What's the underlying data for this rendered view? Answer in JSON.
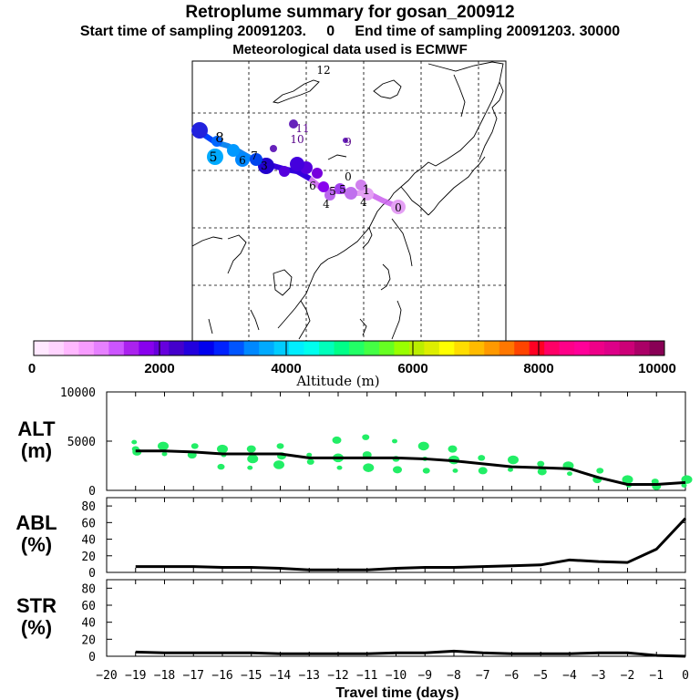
{
  "header": {
    "title": "Retroplume summary for gosan_200912",
    "sampling_line": "Start time of sampling 20091203.     0     End time of sampling 20091203. 30000",
    "met_line": "Meteorological data used is ECMWF"
  },
  "map": {
    "labels": [
      {
        "text": "12",
        "color": "#000000"
      },
      {
        "text": "11",
        "color": "#550088"
      },
      {
        "text": "10",
        "color": "#550088"
      },
      {
        "text": "9",
        "color": "#550088"
      },
      {
        "text": "8",
        "color": "#000000"
      },
      {
        "text": "5",
        "color": "#000000"
      },
      {
        "text": "6",
        "color": "#000000"
      },
      {
        "text": "7",
        "color": "#000000"
      },
      {
        "text": "3",
        "color": "#000000"
      },
      {
        "text": "6",
        "color": "#000000"
      },
      {
        "text": "5",
        "color": "#000000"
      },
      {
        "text": "4",
        "color": "#000000"
      },
      {
        "text": "0",
        "color": "#000000"
      },
      {
        "text": "5",
        "color": "#000000"
      },
      {
        "text": "4",
        "color": "#000000"
      },
      {
        "text": "1",
        "color": "#000000"
      },
      {
        "text": "0",
        "color": "#000000"
      }
    ]
  },
  "colorbar": {
    "ticks": [
      "0",
      "2000",
      "4000",
      "6000",
      "8000",
      "10000"
    ],
    "label": "Altitude (m)",
    "colors": [
      "#ffe8ff",
      "#ffd4ff",
      "#ffb8ff",
      "#f79cff",
      "#e680ff",
      "#cc55ff",
      "#aa22ee",
      "#8800ee",
      "#6600dd",
      "#4400cc",
      "#2200dd",
      "#0000ee",
      "#0022ff",
      "#0055ff",
      "#0088ff",
      "#00aaff",
      "#00ccff",
      "#00eeff",
      "#00ffee",
      "#00ffbb",
      "#00ff88",
      "#22ff66",
      "#44ff44",
      "#66ff22",
      "#99ff00",
      "#bbee00",
      "#ddee00",
      "#ffff00",
      "#ffdd00",
      "#ffbb00",
      "#ff9900",
      "#ff7700",
      "#ff4400",
      "#ff0022",
      "#ff0066",
      "#ff0088",
      "#ff0099",
      "#ee0088",
      "#dd0088",
      "#cc0077",
      "#aa0066",
      "#880055"
    ]
  },
  "chart_data": [
    {
      "type": "line",
      "name": "ALT",
      "ylabel": "ALT\n(m)",
      "yticks": [
        "10000",
        "5000",
        "0"
      ],
      "ylim": [
        0,
        10000
      ],
      "x": [
        -19,
        -18,
        -17,
        -16,
        -15,
        -14,
        -13,
        -12,
        -11,
        -10,
        -9,
        -8,
        -7,
        -6,
        -5,
        -4,
        -3,
        -2,
        -1,
        0
      ],
      "values": [
        4000,
        4000,
        3900,
        3700,
        3700,
        3700,
        3300,
        3300,
        3300,
        3300,
        3200,
        3000,
        2700,
        2400,
        2300,
        2200,
        1300,
        600,
        600,
        800
      ],
      "scatter_series": {
        "x": [
          -19,
          -19,
          -19,
          -18,
          -18,
          -17,
          -17,
          -16,
          -16,
          -16,
          -15,
          -15,
          -15,
          -14,
          -14,
          -14,
          -13,
          -13,
          -12,
          -12,
          -12,
          -11,
          -11,
          -11,
          -10,
          -10,
          -10,
          -9,
          -9,
          -9,
          -8,
          -8,
          -8,
          -7,
          -7,
          -6,
          -6,
          -5,
          -5,
          -4,
          -4,
          -3,
          -3,
          -2,
          -2,
          -1,
          -1,
          0,
          0
        ],
        "y": [
          4900,
          4200,
          3900,
          4500,
          3700,
          4500,
          3600,
          4200,
          3600,
          2400,
          4200,
          3200,
          2300,
          4500,
          3500,
          2600,
          3600,
          2900,
          5100,
          3300,
          2300,
          5400,
          3600,
          2300,
          5000,
          3200,
          2100,
          4500,
          3200,
          2000,
          4200,
          3100,
          2000,
          3300,
          2000,
          3100,
          2100,
          2700,
          1900,
          2500,
          1700,
          2000,
          1100,
          1100,
          500,
          900,
          400,
          1100,
          500
        ],
        "color": "#22ee66"
      }
    },
    {
      "type": "line",
      "name": "ABL",
      "ylabel": "ABL\n(%)",
      "yticks": [
        "80",
        "60",
        "40",
        "20",
        "0"
      ],
      "ylim": [
        0,
        90
      ],
      "x": [
        -19,
        -18,
        -17,
        -16,
        -15,
        -14,
        -13,
        -12,
        -11,
        -10,
        -9,
        -8,
        -7,
        -6,
        -5,
        -4,
        -3,
        -2,
        -1,
        0
      ],
      "values": [
        7,
        7,
        7,
        6,
        6,
        5,
        3,
        3,
        3,
        5,
        6,
        6,
        7,
        8,
        9,
        15,
        13,
        12,
        28,
        65
      ]
    },
    {
      "type": "line",
      "name": "STR",
      "ylabel": "STR\n(%)",
      "yticks": [
        "80",
        "60",
        "40",
        "20",
        "0"
      ],
      "ylim": [
        0,
        90
      ],
      "x": [
        -19,
        -18,
        -17,
        -16,
        -15,
        -14,
        -13,
        -12,
        -11,
        -10,
        -9,
        -8,
        -7,
        -6,
        -5,
        -4,
        -3,
        -2,
        -1,
        0
      ],
      "values": [
        5,
        4,
        4,
        4,
        4,
        3,
        3,
        3,
        3,
        4,
        4,
        6,
        4,
        3,
        3,
        3,
        4,
        4,
        1,
        0
      ]
    }
  ],
  "xaxis": {
    "ticks": [
      -20,
      -19,
      -18,
      -17,
      -16,
      -15,
      -14,
      -13,
      -12,
      -11,
      -10,
      -9,
      -8,
      -7,
      -6,
      -5,
      -4,
      -3,
      -2,
      -1,
      0
    ],
    "label": "Travel time (days)",
    "xlim": [
      -20,
      0
    ]
  }
}
